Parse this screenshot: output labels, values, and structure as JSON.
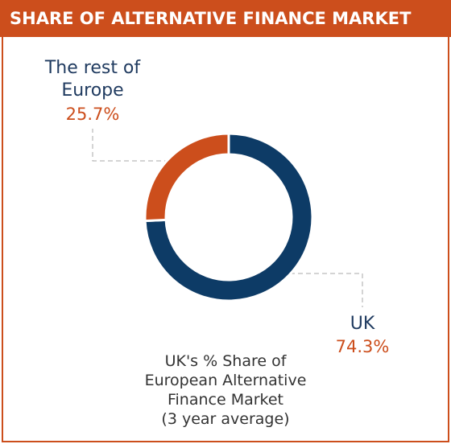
{
  "chart_data": {
    "type": "pie",
    "title": "SHARE OF ALTERNATIVE FINANCE MARKET",
    "categories": [
      "UK",
      "The rest of Europe"
    ],
    "values": [
      74.3,
      25.7
    ],
    "value_labels": [
      "74.3%",
      "25.7%"
    ],
    "colors": [
      "#0d3b66",
      "#cc4e1c"
    ],
    "donut": true,
    "note": [
      "UK's % Share of",
      "European Alternative",
      "Finance Market",
      "(3 year average)"
    ]
  }
}
